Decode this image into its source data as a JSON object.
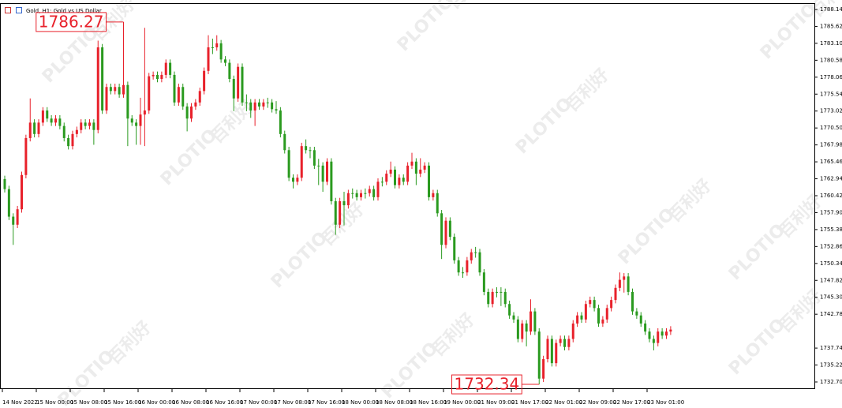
{
  "chart_data": {
    "type": "candlestick",
    "title": "Gold, H1:  Gold vs US Dollar",
    "watermark": {
      "brand": "PLOTIO",
      "text": "百利好"
    },
    "up_color": "#e8212b",
    "down_color": "#2a9a1f",
    "ylim": [
      1731.76,
      1788.96
    ],
    "yticks": [
      1788.14,
      1785.62,
      {
        "value": 1783.1,
        "label": "1783.10"
      },
      1780.58,
      1778.06,
      1775.54,
      1773.02,
      {
        "value": 1770.5,
        "label": "1770.50"
      },
      1767.98,
      1765.46,
      1762.94,
      1760.42,
      {
        "value": 1757.9,
        "label": "1757.90"
      },
      1755.38,
      1752.86,
      1750.34,
      1747.82,
      {
        "value": 1745.3,
        "label": "1745.30"
      },
      1742.78,
      1737.74,
      1735.22,
      {
        "value": 1732.7,
        "label": "1732.70"
      }
    ],
    "categories": [
      "14 Nov 2022",
      null,
      null,
      null,
      null,
      null,
      null,
      null,
      "15 Nov 00:00",
      null,
      null,
      null,
      null,
      null,
      null,
      null,
      "15 Nov 08:00",
      null,
      null,
      null,
      null,
      null,
      null,
      null,
      "15 Nov 16:00",
      null,
      null,
      null,
      null,
      null,
      null,
      null,
      "16 Nov 00:00",
      null,
      null,
      null,
      null,
      null,
      null,
      null,
      "16 Nov 08:00",
      null,
      null,
      null,
      null,
      null,
      null,
      null,
      "16 Nov 16:00",
      null,
      null,
      null,
      null,
      null,
      null,
      null,
      "17 Nov 00:00",
      null,
      null,
      null,
      null,
      null,
      null,
      null,
      "17 Nov 08:00",
      null,
      null,
      null,
      null,
      null,
      null,
      null,
      "17 Nov 16:00",
      null,
      null,
      null,
      null,
      null,
      null,
      null,
      "18 Nov 00:00",
      null,
      null,
      null,
      null,
      null,
      null,
      null,
      "18 Nov 08:00",
      null,
      null,
      null,
      null,
      null,
      null,
      null,
      "18 Nov 16:00",
      null,
      null,
      null,
      null,
      null,
      null,
      null,
      "19 Nov 00:00",
      null,
      null,
      null,
      null,
      null,
      null,
      null,
      "21 Nov 09:00",
      null,
      null,
      null,
      null,
      null,
      null,
      null,
      "21 Nov 17:00",
      null,
      null,
      null,
      null,
      null,
      null,
      null,
      "22 Nov 01:00",
      null,
      null,
      null,
      null,
      null,
      null,
      null,
      "22 Nov 09:00",
      null,
      null,
      null,
      null,
      null,
      null,
      null,
      "22 Nov 17:00",
      null,
      null,
      null,
      null,
      null,
      null,
      null,
      "23 Nov 01:00",
      null,
      null,
      null,
      null,
      null
    ],
    "open": [
      1762.9,
      1761.4,
      1757.3,
      1756.1,
      1758.4,
      1763.5,
      1769.0,
      1771.3,
      1769.6,
      1771.3,
      1773.1,
      1771.9,
      1771.3,
      1771.9,
      1770.8,
      1769.0,
      1767.8,
      1769.6,
      1770.2,
      1771.3,
      1770.8,
      1771.3,
      1770.2,
      1782.5,
      1773.1,
      1776.6,
      1776.0,
      1776.6,
      1775.5,
      1776.9,
      1771.9,
      1771.3,
      1770.8,
      1772.5,
      1773.1,
      1778.2,
      1778.4,
      1777.8,
      1778.4,
      1780.2,
      1778.4,
      1774.3,
      1776.6,
      1773.7,
      1771.9,
      1773.7,
      1774.3,
      1776.0,
      1779.0,
      1782.5,
      1782.5,
      1783.1,
      1780.7,
      1780.2,
      1777.8,
      1774.9,
      1779.6,
      1774.3,
      1774.3,
      1773.1,
      1774.3,
      1773.7,
      1774.3,
      1774.3,
      1773.3,
      1773.1,
      1769.6,
      1767.2,
      1763.1,
      1762.5,
      1763.1,
      1767.8,
      1767.2,
      1767.2,
      1764.9,
      1764.9,
      1762.5,
      1765.5,
      1759.6,
      1756.1,
      1759.6,
      1759.0,
      1760.8,
      1760.8,
      1760.2,
      1760.8,
      1760.8,
      1761.4,
      1760.2,
      1762.5,
      1762.5,
      1763.7,
      1764.3,
      1762.0,
      1763.1,
      1762.5,
      1764.9,
      1765.5,
      1763.7,
      1764.3,
      1764.9,
      1760.2,
      1760.8,
      1757.8,
      1753.1,
      1756.7,
      1754.3,
      1750.8,
      1749.0,
      1749.0,
      1750.8,
      1752.0,
      1752.0,
      1749.0,
      1746.1,
      1744.3,
      1746.1,
      1746.1,
      1746.1,
      1744.3,
      1742.6,
      1742.0,
      1739.1,
      1741.4,
      1740.2,
      1743.2,
      1740.2,
      1733.2,
      1736.1,
      1739.1,
      1735.5,
      1738.5,
      1739.1,
      1737.9,
      1739.1,
      1741.4,
      1742.6,
      1742.0,
      1744.3,
      1744.9,
      1743.7,
      1741.4,
      1742.0,
      1743.7,
      1744.9,
      1746.7,
      1747.9,
      1748.4,
      1746.1,
      1743.2,
      1742.6,
      1741.4,
      1740.2,
      1739.1,
      1738.5,
      1740.2,
      1739.6,
      1740.2
    ],
    "high": [
      1763.4,
      1761.9,
      1757.8,
      1758.9,
      1764.0,
      1769.5,
      1774.9,
      1771.8,
      1771.8,
      1773.6,
      1773.6,
      1772.4,
      1772.4,
      1772.4,
      1771.3,
      1769.5,
      1770.1,
      1770.7,
      1771.8,
      1771.8,
      1771.8,
      1771.8,
      1783.5,
      1783.0,
      1777.1,
      1777.1,
      1777.1,
      1777.1,
      1786.27,
      1777.4,
      1772.4,
      1771.8,
      1775.0,
      1785.4,
      1778.7,
      1778.9,
      1778.9,
      1778.9,
      1780.7,
      1780.7,
      1778.9,
      1777.1,
      1777.1,
      1774.2,
      1774.2,
      1774.8,
      1776.5,
      1779.5,
      1784.3,
      1783.8,
      1784.3,
      1783.6,
      1781.2,
      1780.7,
      1778.3,
      1780.1,
      1780.1,
      1775.5,
      1774.8,
      1774.8,
      1774.8,
      1774.8,
      1775.0,
      1774.8,
      1774.5,
      1773.6,
      1770.1,
      1767.7,
      1763.6,
      1763.6,
      1768.3,
      1768.8,
      1767.7,
      1767.7,
      1765.9,
      1765.4,
      1766.0,
      1766.0,
      1760.1,
      1760.1,
      1761.0,
      1761.3,
      1761.5,
      1761.3,
      1761.3,
      1761.5,
      1761.9,
      1761.9,
      1763.0,
      1763.2,
      1764.2,
      1765.5,
      1764.8,
      1763.6,
      1763.6,
      1765.4,
      1766.8,
      1766.0,
      1766.0,
      1765.4,
      1765.4,
      1761.3,
      1761.3,
      1758.3,
      1757.2,
      1757.2,
      1754.8,
      1751.3,
      1749.8,
      1751.3,
      1752.5,
      1752.8,
      1752.5,
      1749.5,
      1746.6,
      1746.6,
      1746.8,
      1746.8,
      1746.6,
      1744.8,
      1743.1,
      1742.5,
      1741.9,
      1741.9,
      1745.0,
      1743.7,
      1740.7,
      1736.6,
      1739.6,
      1739.6,
      1739.0,
      1739.6,
      1739.6,
      1739.6,
      1741.9,
      1743.1,
      1743.1,
      1744.8,
      1745.4,
      1745.4,
      1744.2,
      1742.5,
      1744.2,
      1745.4,
      1747.2,
      1749.0,
      1748.9,
      1748.9,
      1746.6,
      1743.7,
      1743.1,
      1741.9,
      1740.7,
      1739.6,
      1740.7,
      1740.7,
      1740.7,
      1741.0
    ],
    "low": [
      1760.9,
      1756.8,
      1753.1,
      1755.6,
      1757.9,
      1763.0,
      1768.5,
      1769.1,
      1769.1,
      1770.8,
      1771.4,
      1770.8,
      1770.8,
      1770.3,
      1768.5,
      1767.3,
      1767.3,
      1769.1,
      1769.7,
      1770.3,
      1770.3,
      1768.0,
      1769.7,
      1772.6,
      1772.6,
      1775.5,
      1775.5,
      1775.0,
      1775.0,
      1767.8,
      1770.8,
      1768.0,
      1768.0,
      1767.8,
      1772.6,
      1777.7,
      1777.3,
      1777.3,
      1777.9,
      1777.9,
      1773.8,
      1773.8,
      1773.2,
      1770.0,
      1771.4,
      1773.2,
      1773.8,
      1775.5,
      1778.5,
      1781.5,
      1782.0,
      1780.2,
      1779.7,
      1777.3,
      1773.0,
      1774.4,
      1773.8,
      1773.0,
      1772.0,
      1770.8,
      1773.2,
      1773.2,
      1773.5,
      1772.8,
      1772.6,
      1769.1,
      1766.7,
      1762.6,
      1761.5,
      1762.0,
      1762.6,
      1766.7,
      1766.0,
      1764.4,
      1762.0,
      1761.0,
      1762.0,
      1759.1,
      1754.6,
      1755.6,
      1756.0,
      1758.5,
      1760.0,
      1759.7,
      1759.7,
      1760.0,
      1760.3,
      1759.7,
      1759.7,
      1761.8,
      1762.0,
      1763.2,
      1761.5,
      1761.5,
      1762.0,
      1762.0,
      1764.4,
      1762.0,
      1763.2,
      1763.8,
      1759.7,
      1759.7,
      1757.3,
      1751.0,
      1752.6,
      1753.8,
      1750.3,
      1748.5,
      1748.2,
      1748.5,
      1750.3,
      1751.2,
      1748.5,
      1745.6,
      1743.8,
      1743.8,
      1745.3,
      1744.0,
      1743.8,
      1742.1,
      1741.5,
      1738.6,
      1738.6,
      1738.0,
      1739.7,
      1739.7,
      1732.34,
      1732.7,
      1735.6,
      1735.0,
      1735.0,
      1738.0,
      1737.4,
      1737.4,
      1738.6,
      1740.9,
      1741.5,
      1741.5,
      1743.8,
      1743.2,
      1740.9,
      1740.9,
      1741.5,
      1743.2,
      1744.4,
      1746.2,
      1746.0,
      1745.6,
      1742.7,
      1742.1,
      1740.9,
      1739.7,
      1738.6,
      1737.4,
      1738.0,
      1739.1,
      1739.1,
      1739.7
    ],
    "close": [
      1761.4,
      1757.3,
      1756.1,
      1758.4,
      1763.5,
      1769.0,
      1771.3,
      1769.6,
      1771.3,
      1773.1,
      1771.9,
      1771.3,
      1771.9,
      1770.8,
      1769.0,
      1767.8,
      1769.6,
      1770.2,
      1771.3,
      1770.8,
      1771.3,
      1770.2,
      1782.5,
      1773.1,
      1776.6,
      1776.0,
      1776.6,
      1775.5,
      1776.9,
      1771.9,
      1771.3,
      1770.8,
      1772.5,
      1773.1,
      1778.2,
      1778.4,
      1777.8,
      1778.4,
      1780.2,
      1778.4,
      1774.3,
      1776.6,
      1773.7,
      1771.9,
      1773.7,
      1774.3,
      1776.0,
      1779.0,
      1782.5,
      1782.5,
      1783.1,
      1780.7,
      1780.2,
      1777.8,
      1774.9,
      1779.6,
      1774.3,
      1774.3,
      1773.1,
      1774.3,
      1773.7,
      1774.3,
      1774.3,
      1773.3,
      1773.1,
      1769.6,
      1767.2,
      1763.1,
      1762.5,
      1763.1,
      1767.8,
      1767.2,
      1767.2,
      1764.9,
      1764.9,
      1762.5,
      1765.5,
      1759.6,
      1756.1,
      1759.6,
      1759.0,
      1760.8,
      1760.8,
      1760.2,
      1760.8,
      1760.8,
      1761.4,
      1760.2,
      1762.5,
      1762.5,
      1763.7,
      1764.3,
      1762.0,
      1763.1,
      1762.5,
      1764.9,
      1765.5,
      1763.7,
      1764.3,
      1764.9,
      1760.2,
      1760.8,
      1757.8,
      1753.1,
      1756.7,
      1754.3,
      1750.8,
      1749.0,
      1749.0,
      1750.8,
      1752.0,
      1752.0,
      1749.0,
      1746.1,
      1744.3,
      1746.1,
      1746.1,
      1746.1,
      1744.3,
      1742.6,
      1742.0,
      1739.1,
      1741.4,
      1740.2,
      1743.2,
      1740.2,
      1733.2,
      1736.1,
      1739.1,
      1735.5,
      1738.5,
      1739.1,
      1737.9,
      1739.1,
      1741.4,
      1742.6,
      1742.0,
      1744.3,
      1744.9,
      1743.7,
      1741.4,
      1742.0,
      1743.7,
      1744.9,
      1746.7,
      1747.9,
      1748.4,
      1746.1,
      1743.2,
      1742.6,
      1741.4,
      1740.2,
      1739.1,
      1738.5,
      1740.2,
      1739.6,
      1740.2,
      1740.5
    ]
  }
}
